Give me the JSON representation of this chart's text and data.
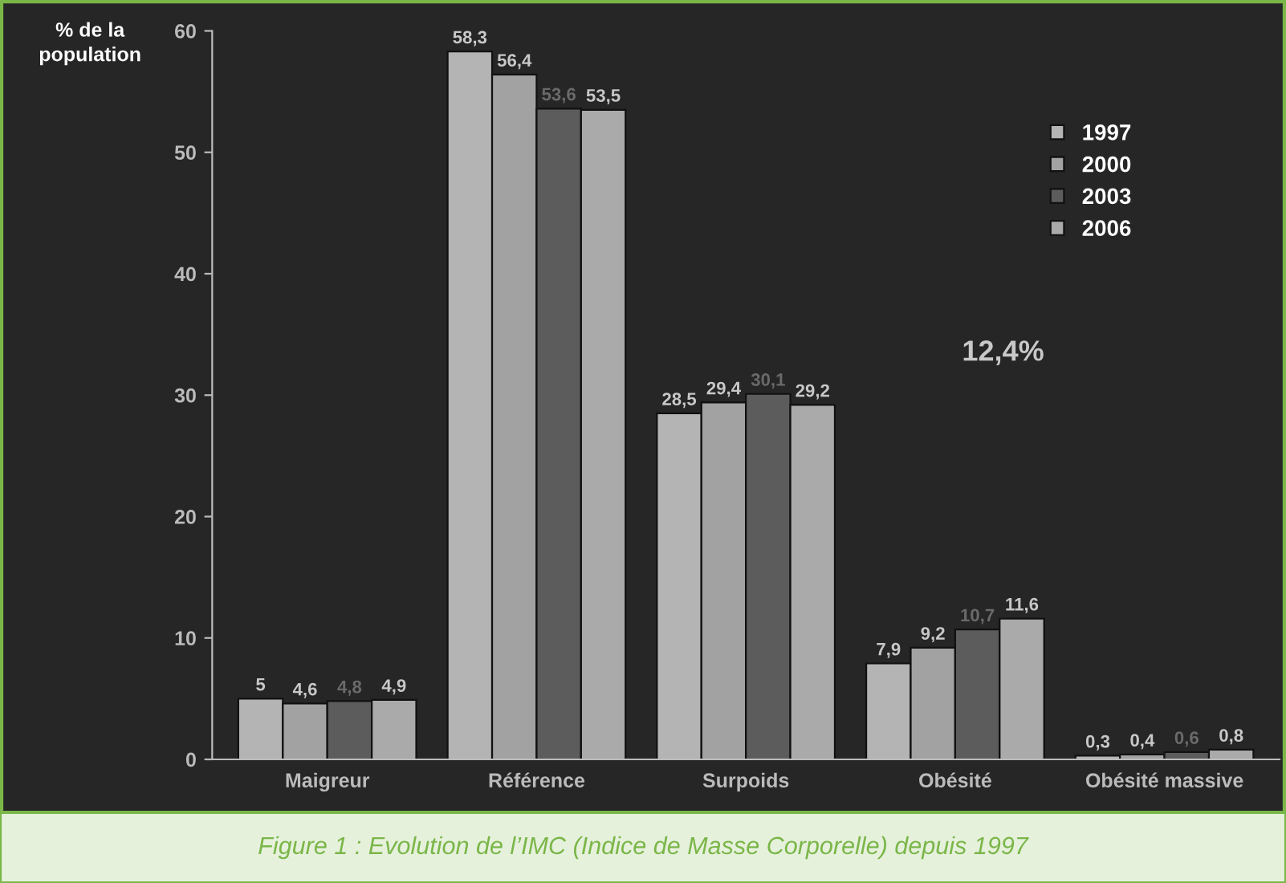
{
  "chart_data": {
    "type": "bar",
    "ylabel": "% de la population",
    "categories": [
      "Maigreur",
      "Référence",
      "Surpoids",
      "Obésité",
      "Obésité massive"
    ],
    "series": [
      {
        "name": "1997",
        "color": "#b4b4b4",
        "values": [
          5,
          58.3,
          28.5,
          7.9,
          0.3
        ],
        "value_labels": [
          "5",
          "58,3",
          "28,5",
          "7,9",
          "0,3"
        ]
      },
      {
        "name": "2000",
        "color": "#a2a2a2",
        "values": [
          4.6,
          56.4,
          29.4,
          9.2,
          0.4
        ],
        "value_labels": [
          "4,6",
          "56,4",
          "29,4",
          "9,2",
          "0,4"
        ]
      },
      {
        "name": "2003",
        "color": "#5c5c5c",
        "values": [
          4.8,
          53.6,
          30.1,
          10.7,
          0.6
        ],
        "value_labels": [
          "4,8",
          "53,6",
          "30,1",
          "10,7",
          "0,6"
        ]
      },
      {
        "name": "2006",
        "color": "#aaaaaa",
        "values": [
          4.9,
          53.5,
          29.2,
          11.6,
          0.8
        ],
        "value_labels": [
          "4,9",
          "53,5",
          "29,2",
          "11,6",
          "0,8"
        ]
      }
    ],
    "ylim": [
      0,
      60
    ],
    "yticks": [
      0,
      10,
      20,
      30,
      40,
      50,
      60
    ],
    "legend": "top right",
    "annotations": [
      "12,4%",
      "Figure 1 : Evolution de l’IMC (Indice de Masse Corporelle) depuis 1997"
    ]
  }
}
